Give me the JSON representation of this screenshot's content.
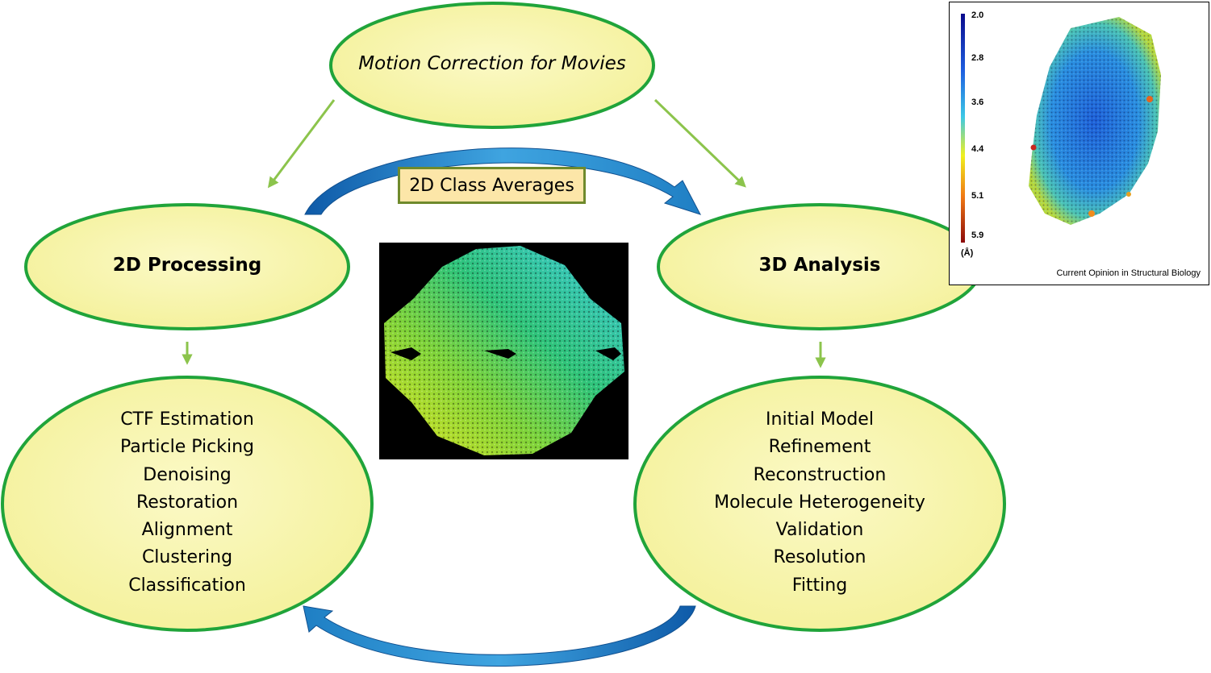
{
  "nodes": {
    "motion": "Motion Correction for Movies",
    "processing_2d": "2D Processing",
    "analysis_3d": "3D Analysis",
    "class_averages": "2D Class Averages"
  },
  "processing_steps": [
    "CTF Estimation",
    "Particle Picking",
    "Denoising",
    "Restoration",
    "Alignment",
    "Clustering",
    "Classification"
  ],
  "analysis_steps": [
    "Initial Model",
    "Refinement",
    "Reconstruction",
    "Molecule Heterogeneity",
    "Validation",
    "Resolution",
    "Fitting"
  ],
  "inset": {
    "scale_ticks": [
      "2.0",
      "2.8",
      "3.6",
      "4.4",
      "5.1",
      "5.9"
    ],
    "unit": "(Å)",
    "credit": "Current Opinion in Structural Biology"
  },
  "colors": {
    "ellipse_fill": "#f8f6a8",
    "ellipse_stroke": "#20a43a",
    "green_arrow": "#8cc44c",
    "blue_arrow": "#1f7fc4",
    "box_fill": "#fce6a8",
    "box_stroke": "#6f8a2c"
  }
}
